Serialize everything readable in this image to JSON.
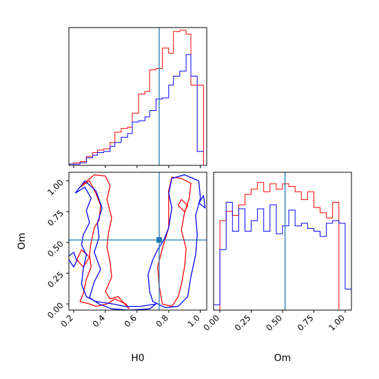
{
  "colors": {
    "series_a": "#ff0000",
    "series_b": "#0000ff",
    "truth": "#1f77b4",
    "axes": "#000000"
  },
  "chart_data": [
    {
      "type": "histogram",
      "panel": "top-left",
      "parameter": "H0",
      "xlim": [
        0.17,
        1.04
      ],
      "bin_edges": [
        0.17,
        0.2,
        0.24,
        0.28,
        0.32,
        0.35,
        0.39,
        0.43,
        0.46,
        0.5,
        0.54,
        0.57,
        0.61,
        0.65,
        0.68,
        0.72,
        0.76,
        0.8,
        0.83,
        0.87,
        0.91,
        0.94,
        0.98,
        1.02
      ],
      "series": [
        {
          "color": "red",
          "counts": [
            1,
            2,
            3,
            7,
            10,
            12,
            13,
            18,
            26,
            29,
            30,
            41,
            56,
            58,
            75,
            76,
            92,
            88,
            105,
            106,
            103,
            63,
            63,
            0
          ]
        },
        {
          "color": "blue",
          "counts": [
            1,
            1,
            2,
            6,
            8,
            10,
            11,
            15,
            18,
            22,
            25,
            34,
            35,
            38,
            43,
            52,
            53,
            63,
            70,
            74,
            87,
            70,
            11,
            11
          ]
        }
      ],
      "truth_x": 0.74,
      "yticks_visible": false,
      "xticks_visible": false
    },
    {
      "type": "contour",
      "panel": "bottom-left",
      "xlabel": "H0",
      "ylabel": "Om",
      "xlim": [
        0.17,
        1.04
      ],
      "ylim": [
        -0.05,
        1.07
      ],
      "xticks": [
        "0.2",
        "0.4",
        "0.6",
        "0.8",
        "1.0"
      ],
      "yticks": [
        "0.00",
        "0.25",
        "0.50",
        "0.75",
        "1.00"
      ],
      "truth": {
        "x": 0.74,
        "y": 0.52
      },
      "series": [
        {
          "color": "red",
          "contours": [
            [
              [
                0.24,
                0.95
              ],
              [
                0.3,
                1.0
              ],
              [
                0.34,
                0.9
              ],
              [
                0.37,
                0.8
              ],
              [
                0.36,
                0.68
              ],
              [
                0.33,
                0.62
              ],
              [
                0.31,
                0.5
              ],
              [
                0.3,
                0.4
              ],
              [
                0.31,
                0.3
              ],
              [
                0.28,
                0.2
              ],
              [
                0.26,
                0.08
              ],
              [
                0.24,
                0.02
              ],
              [
                0.3,
                0.0
              ],
              [
                0.34,
                -0.02
              ],
              [
                0.41,
                0.0
              ],
              [
                0.46,
                0.04
              ],
              [
                0.53,
                0.0
              ],
              [
                0.55,
                -0.04
              ],
              [
                0.48,
                0.06
              ],
              [
                0.43,
                0.04
              ],
              [
                0.4,
                0.1
              ],
              [
                0.44,
                0.22
              ],
              [
                0.43,
                0.34
              ],
              [
                0.41,
                0.46
              ],
              [
                0.42,
                0.58
              ],
              [
                0.44,
                0.7
              ],
              [
                0.41,
                0.85
              ],
              [
                0.43,
                0.96
              ],
              [
                0.4,
                1.04
              ],
              [
                0.33,
                1.05
              ],
              [
                0.24,
                0.95
              ]
            ],
            [
              [
                0.76,
                0.0
              ],
              [
                0.74,
                0.15
              ],
              [
                0.73,
                0.3
              ],
              [
                0.76,
                0.45
              ],
              [
                0.8,
                0.62
              ],
              [
                0.8,
                0.76
              ],
              [
                0.8,
                0.92
              ],
              [
                0.82,
                1.03
              ],
              [
                0.88,
                1.02
              ],
              [
                0.94,
                0.98
              ],
              [
                0.93,
                0.86
              ],
              [
                0.9,
                0.74
              ],
              [
                0.88,
                0.6
              ],
              [
                0.91,
                0.45
              ],
              [
                0.9,
                0.3
              ],
              [
                0.88,
                0.16
              ],
              [
                0.86,
                0.06
              ],
              [
                0.82,
                -0.02
              ],
              [
                0.76,
                0.0
              ]
            ],
            [
              [
                0.25,
                0.44
              ],
              [
                0.3,
                0.38
              ],
              [
                0.26,
                0.3
              ],
              [
                0.22,
                0.36
              ],
              [
                0.25,
                0.44
              ]
            ],
            [
              [
                0.88,
                0.85
              ],
              [
                0.92,
                0.8
              ],
              [
                0.9,
                0.75
              ],
              [
                0.86,
                0.8
              ],
              [
                0.88,
                0.85
              ]
            ]
          ]
        },
        {
          "color": "blue",
          "contours": [
            [
              [
                0.21,
                0.9
              ],
              [
                0.27,
                0.95
              ],
              [
                0.31,
                0.86
              ],
              [
                0.28,
                0.76
              ],
              [
                0.3,
                0.66
              ],
              [
                0.26,
                0.56
              ],
              [
                0.25,
                0.48
              ],
              [
                0.28,
                0.4
              ],
              [
                0.26,
                0.28
              ],
              [
                0.25,
                0.16
              ],
              [
                0.28,
                0.06
              ],
              [
                0.34,
                0.02
              ],
              [
                0.45,
                0.0
              ],
              [
                0.52,
                -0.02
              ],
              [
                0.62,
                -0.02
              ],
              [
                0.72,
                0.0
              ],
              [
                0.68,
                -0.04
              ],
              [
                0.55,
                -0.05
              ],
              [
                0.44,
                -0.04
              ],
              [
                0.36,
                0.0
              ],
              [
                0.3,
                0.05
              ],
              [
                0.33,
                0.18
              ],
              [
                0.37,
                0.28
              ],
              [
                0.33,
                0.42
              ],
              [
                0.36,
                0.54
              ],
              [
                0.35,
                0.66
              ],
              [
                0.38,
                0.78
              ],
              [
                0.34,
                0.92
              ],
              [
                0.27,
                1.0
              ],
              [
                0.21,
                0.9
              ]
            ],
            [
              [
                0.68,
                0.1
              ],
              [
                0.67,
                0.24
              ],
              [
                0.7,
                0.36
              ],
              [
                0.73,
                0.44
              ],
              [
                0.77,
                0.52
              ],
              [
                0.8,
                0.62
              ],
              [
                0.82,
                0.78
              ],
              [
                0.8,
                0.9
              ],
              [
                0.82,
                1.02
              ],
              [
                0.9,
                1.05
              ],
              [
                0.99,
                1.0
              ],
              [
                1.0,
                0.86
              ],
              [
                0.97,
                0.72
              ],
              [
                0.98,
                0.56
              ],
              [
                0.97,
                0.4
              ],
              [
                0.94,
                0.22
              ],
              [
                0.92,
                0.06
              ],
              [
                0.86,
                -0.02
              ],
              [
                0.78,
                -0.03
              ],
              [
                0.7,
                0.02
              ],
              [
                0.68,
                0.1
              ]
            ],
            [
              [
                0.16,
                0.38
              ],
              [
                0.2,
                0.3
              ],
              [
                0.22,
                0.35
              ],
              [
                0.2,
                0.42
              ],
              [
                0.16,
                0.38
              ]
            ],
            [
              [
                0.99,
                0.82
              ],
              [
                1.03,
                0.78
              ],
              [
                1.02,
                0.88
              ],
              [
                0.99,
                0.82
              ]
            ]
          ]
        }
      ]
    },
    {
      "type": "histogram",
      "panel": "bottom-right",
      "xlabel": "Om",
      "parameter": "Om",
      "xlim": [
        -0.05,
        1.05
      ],
      "xticks": [
        "0.00",
        "0.25",
        "0.50",
        "0.75",
        "1.00"
      ],
      "bin_edges": [
        -0.05,
        0.0,
        0.05,
        0.1,
        0.15,
        0.2,
        0.25,
        0.3,
        0.35,
        0.4,
        0.45,
        0.5,
        0.55,
        0.6,
        0.65,
        0.7,
        0.75,
        0.8,
        0.85,
        0.9,
        0.95,
        1.0,
        1.05
      ],
      "series": [
        {
          "color": "red",
          "counts": [
            0,
            68,
            75,
            72,
            80,
            88,
            92,
            97,
            90,
            96,
            92,
            96,
            94,
            90,
            84,
            90,
            78,
            74,
            70,
            82,
            0,
            0
          ]
        },
        {
          "color": "blue",
          "counts": [
            4,
            46,
            82,
            60,
            77,
            60,
            68,
            77,
            60,
            80,
            58,
            64,
            76,
            64,
            66,
            62,
            60,
            56,
            66,
            68,
            66,
            16
          ]
        }
      ],
      "truth_x": 0.52,
      "yticks_visible": false
    }
  ]
}
